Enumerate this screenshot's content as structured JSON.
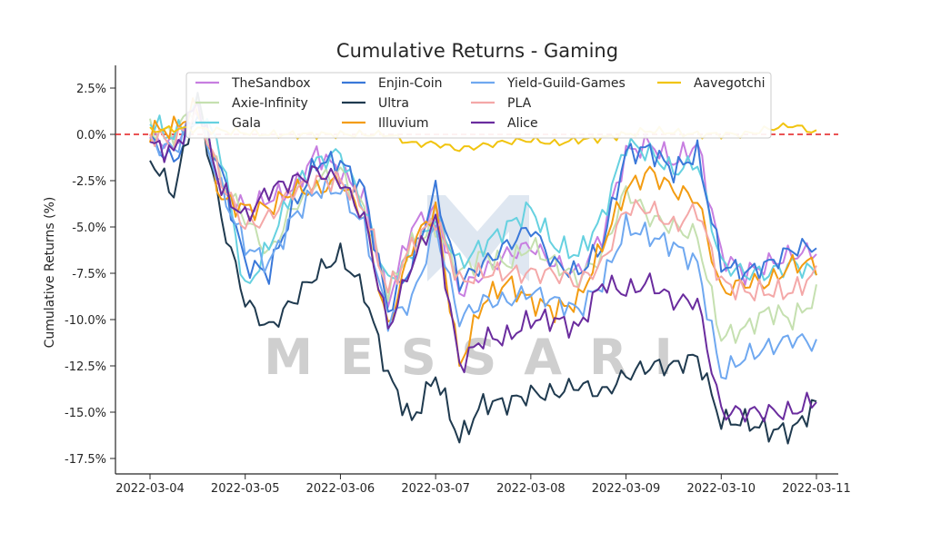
{
  "chart_data": {
    "type": "line",
    "title": "Cumulative Returns - Gaming",
    "xlabel": "",
    "ylabel": "Cumulative Returns (%)",
    "x_ticks": [
      "2022-03-04",
      "2022-03-05",
      "2022-03-06",
      "2022-03-07",
      "2022-03-08",
      "2022-03-09",
      "2022-03-10",
      "2022-03-11"
    ],
    "y_ticks": [
      "2.5%",
      "0.0%",
      "-2.5%",
      "-5.0%",
      "-7.5%",
      "-10.0%",
      "-12.5%",
      "-15.0%",
      "-17.5%"
    ],
    "ylim": [
      -18.5,
      3.8
    ],
    "reference_line": {
      "y": 0,
      "color": "#e31a1c",
      "style": "dashed"
    },
    "watermark": "MESSARI",
    "legend_position": "top",
    "x": [
      0,
      0.25,
      0.5,
      0.75,
      1,
      1.25,
      1.5,
      1.75,
      2,
      2.25,
      2.5,
      2.75,
      3,
      3.25,
      3.5,
      3.75,
      4,
      4.25,
      4.5,
      4.75,
      5,
      5.25,
      5.5,
      5.75,
      6,
      6.25,
      6.5,
      6.75,
      7
    ],
    "series": [
      {
        "name": "TheSandbox",
        "color": "#c77ee0",
        "values": [
          -0.2,
          -0.5,
          1.5,
          -3.0,
          -4.0,
          -3.5,
          -3.0,
          -1.0,
          -2.0,
          -3.5,
          -9.0,
          -5.0,
          -4.0,
          -8.5,
          -7.5,
          -6.5,
          -6.0,
          -7.0,
          -7.5,
          -5.5,
          -1.0,
          -0.5,
          -1.5,
          -0.5,
          -6.5,
          -7.5,
          -7.0,
          -6.5,
          -6.3
        ]
      },
      {
        "name": "Axie-Infinity",
        "color": "#c5e0b0",
        "values": [
          0.3,
          0.0,
          1.8,
          -2.5,
          -4.5,
          -6.5,
          -4.0,
          -2.5,
          -2.0,
          -4.0,
          -8.5,
          -6.0,
          -5.0,
          -7.5,
          -6.5,
          -7.0,
          -6.0,
          -7.0,
          -7.8,
          -6.5,
          -3.0,
          -4.5,
          -5.0,
          -5.5,
          -11.0,
          -10.5,
          -9.5,
          -10.0,
          -8.8
        ]
      },
      {
        "name": "Gala",
        "color": "#66d1e0",
        "values": [
          0.7,
          -0.2,
          1.7,
          -1.0,
          -8.5,
          -6.0,
          -3.0,
          -1.5,
          -1.0,
          -4.0,
          -8.0,
          -6.5,
          -4.5,
          -7.0,
          -6.0,
          -5.0,
          -4.0,
          -6.0,
          -6.5,
          -4.5,
          -0.5,
          -1.0,
          -2.0,
          -1.5,
          -7.0,
          -7.5,
          -7.5,
          -7.0,
          -7.5
        ]
      },
      {
        "name": "Enjin-Coin",
        "color": "#3a78d9",
        "values": [
          -0.3,
          -1.5,
          1.2,
          -2.0,
          -7.0,
          -7.5,
          -4.0,
          -1.5,
          -1.5,
          -3.0,
          -9.5,
          -7.0,
          -3.0,
          -8.0,
          -7.0,
          -6.0,
          -5.0,
          -7.0,
          -7.5,
          -6.0,
          -1.0,
          -0.8,
          -2.0,
          -1.0,
          -7.0,
          -7.5,
          -7.0,
          -6.2,
          -6.0
        ]
      },
      {
        "name": "Ultra",
        "color": "#1f3a4f",
        "values": [
          -1.3,
          -3.2,
          2.0,
          -4.5,
          -9.0,
          -10.5,
          -9.0,
          -7.5,
          -6.5,
          -8.5,
          -13.0,
          -15.5,
          -13.0,
          -16.5,
          -14.5,
          -14.5,
          -14.0,
          -14.0,
          -13.5,
          -14.0,
          -13.0,
          -12.5,
          -12.5,
          -12.0,
          -15.5,
          -15.5,
          -16.0,
          -16.0,
          -14.5
        ]
      },
      {
        "name": "Illuvium",
        "color": "#f39c12",
        "values": [
          0.2,
          0.3,
          1.5,
          -3.5,
          -4.0,
          -4.0,
          -3.0,
          -3.0,
          -2.5,
          -4.5,
          -10.5,
          -6.0,
          -4.0,
          -12.5,
          -9.0,
          -8.0,
          -9.0,
          -9.5,
          -9.0,
          -6.0,
          -3.0,
          -2.0,
          -3.0,
          -3.5,
          -8.5,
          -8.0,
          -8.0,
          -7.0,
          -7.0
        ]
      },
      {
        "name": "Yield-Guild-Games",
        "color": "#6fa8f0",
        "values": [
          -0.5,
          -0.8,
          1.0,
          -3.0,
          -6.0,
          -7.0,
          -4.5,
          -3.0,
          -3.0,
          -5.0,
          -10.0,
          -9.0,
          -5.0,
          -10.0,
          -9.0,
          -9.0,
          -8.5,
          -9.0,
          -9.5,
          -8.0,
          -5.0,
          -5.5,
          -6.0,
          -7.0,
          -13.0,
          -12.0,
          -11.5,
          -11.0,
          -11.3
        ]
      },
      {
        "name": "PLA",
        "color": "#f4a8a8",
        "values": [
          0.0,
          -0.5,
          1.3,
          -2.5,
          -5.0,
          -4.5,
          -3.0,
          -2.5,
          -2.5,
          -4.0,
          -8.5,
          -6.0,
          -4.5,
          -8.0,
          -7.5,
          -7.5,
          -7.5,
          -7.5,
          -8.0,
          -7.0,
          -4.0,
          -4.0,
          -5.0,
          -4.0,
          -8.0,
          -8.5,
          -8.5,
          -8.5,
          -7.5
        ]
      },
      {
        "name": "Alice",
        "color": "#6a2c9e",
        "values": [
          -0.5,
          -1.0,
          1.8,
          -3.0,
          -4.5,
          -3.0,
          -2.5,
          -2.0,
          -2.5,
          -4.5,
          -10.5,
          -7.0,
          -4.5,
          -12.5,
          -11.0,
          -11.0,
          -10.0,
          -10.0,
          -10.5,
          -8.0,
          -8.5,
          -8.0,
          -9.0,
          -9.0,
          -15.0,
          -15.0,
          -15.0,
          -15.0,
          -14.3
        ]
      },
      {
        "name": "Aavegotchi",
        "color": "#f1c40f",
        "values": [
          0.2,
          0.3,
          0.3,
          0.2,
          0.1,
          0.0,
          0.0,
          0.0,
          0.0,
          0.0,
          0.0,
          -0.5,
          -0.5,
          -0.8,
          -0.6,
          -0.4,
          -0.3,
          -0.5,
          -0.3,
          -0.2,
          0.0,
          0.2,
          0.1,
          0.0,
          0.0,
          0.0,
          0.3,
          0.5,
          0.1
        ]
      }
    ]
  }
}
